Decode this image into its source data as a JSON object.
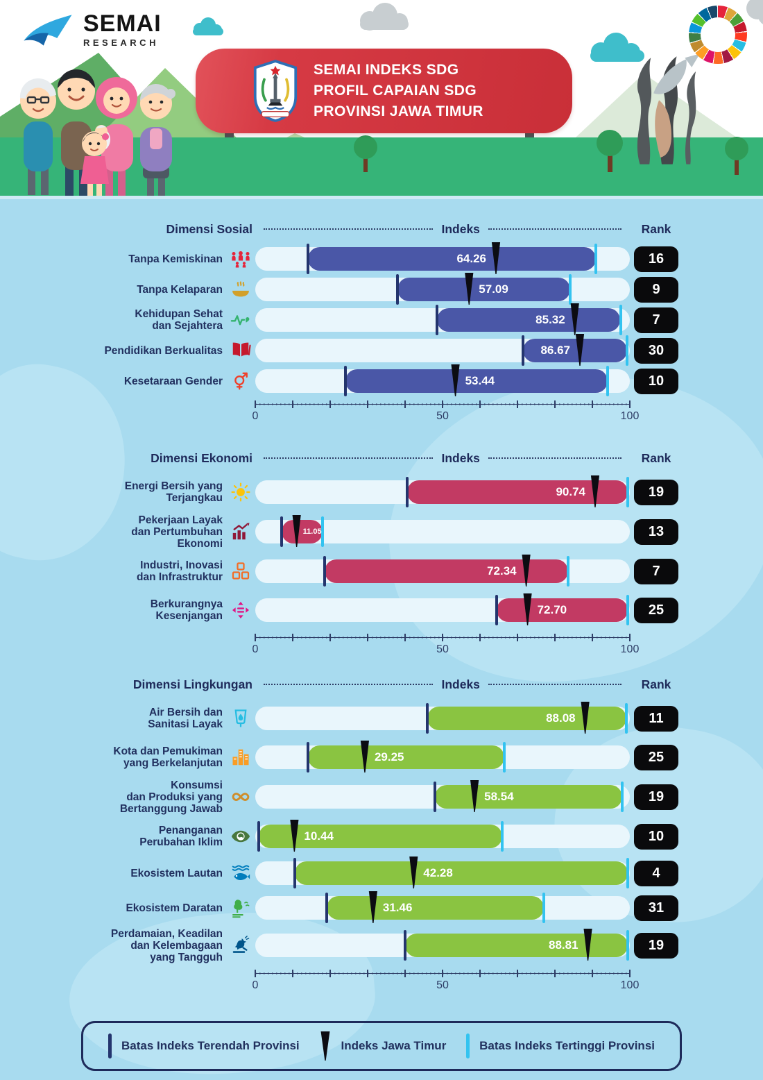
{
  "logo": {
    "title": "SEMAI",
    "subtitle": "RESEARCH"
  },
  "banner": {
    "line1": "SEMAI INDEKS SDG",
    "line2": "PROFIL CAPAIAN SDG",
    "line3": "PROVINSI JAWA TIMUR"
  },
  "table_headers": {
    "indeks": "Indeks",
    "rank": "Rank"
  },
  "legend": {
    "min_label": "Batas Indeks Terendah Provinsi",
    "index_label": "Indeks Jawa Timur",
    "max_label": "Batas Indeks Tertinggi Provinsi"
  },
  "colors": {
    "background": "#a8dbef",
    "track": "#e9f6fc",
    "social_bar": "#4a57a7",
    "economy_bar": "#c23a63",
    "environment_bar": "#8ac441",
    "min_tick": "#24356e",
    "max_tick": "#33c3f0",
    "marker": "#0c0c12",
    "rank_badge": "#0a0a0c",
    "banner_red": "#c92f38",
    "ground_green": "#36b478"
  },
  "sdg_wheel_colors": [
    "#E5243B",
    "#DDA63A",
    "#4C9F38",
    "#C5192D",
    "#FF3A21",
    "#26BDE2",
    "#FCC30B",
    "#A21942",
    "#FD6925",
    "#DD1367",
    "#FD9D24",
    "#BF8B2E",
    "#3F7E44",
    "#0A97D9",
    "#56C02B",
    "#00689D",
    "#19486A"
  ],
  "chart_data": {
    "type": "bar",
    "title": "SEMAI INDEKS SDG — PROFIL CAPAIAN SDG PROVINSI JAWA TIMUR",
    "xlim": [
      0,
      100
    ],
    "axis_ticks": [
      0,
      50,
      100
    ],
    "note": "Horizontal range bars: colored segment spans lowest-to-highest province index; black triangle marks the East Java index value; black badge is national rank.",
    "sections": [
      {
        "name": "Dimensi Sosial",
        "color_key": "social_bar",
        "rows": [
          {
            "label_lines": [
              "Tanpa Kemiskinan"
            ],
            "icon": "family",
            "icon_color": "#e5243b",
            "index": 64.26,
            "display": "64.26",
            "min": 14,
            "max": 91,
            "rank": "16"
          },
          {
            "label_lines": [
              "Tanpa Kelaparan"
            ],
            "icon": "bowl",
            "icon_color": "#d2a02a",
            "index": 57.09,
            "display": "57.09",
            "min": 38,
            "max": 84,
            "rank": "9"
          },
          {
            "label_lines": [
              "Kehidupan Sehat",
              "dan Sejahtera"
            ],
            "icon": "heartbeat",
            "icon_color": "#34b36f",
            "index": 85.32,
            "display": "85.32",
            "min": 48.5,
            "max": 97.5,
            "rank": "7"
          },
          {
            "label_lines": [
              "Pendidikan Berkualitas"
            ],
            "icon": "book",
            "icon_color": "#c5192d",
            "index": 86.67,
            "display": "86.67",
            "min": 71.5,
            "max": 99.3,
            "rank": "30"
          },
          {
            "label_lines": [
              "Kesetaraan Gender"
            ],
            "icon": "gender",
            "icon_color": "#ef402b",
            "index": 53.44,
            "display": "53.44",
            "min": 24,
            "max": 94,
            "rank": "10"
          }
        ]
      },
      {
        "name": "Dimensi Ekonomi",
        "color_key": "economy_bar",
        "rows": [
          {
            "label_lines": [
              "Energi Bersih yang",
              "Terjangkau"
            ],
            "icon": "sun",
            "icon_color": "#fcc30b",
            "index": 90.74,
            "display": "90.74",
            "min": 40.5,
            "max": 99.5,
            "rank": "19"
          },
          {
            "label_lines": [
              "Pekerjaan Layak",
              "dan Pertumbuhan",
              "Ekonomi"
            ],
            "icon": "growth",
            "icon_color": "#8f1838",
            "index": 11.05,
            "display": "11.05",
            "min": 7,
            "max": 18,
            "rank": "13",
            "small_value": true
          },
          {
            "label_lines": [
              "Industri, Inovasi",
              "dan Infrastruktur"
            ],
            "icon": "cubes",
            "icon_color": "#f36d25",
            "index": 72.34,
            "display": "72.34",
            "min": 18.5,
            "max": 83.5,
            "rank": "7"
          },
          {
            "label_lines": [
              "Berkurangnya",
              "Kesenjangan"
            ],
            "icon": "equality",
            "icon_color": "#e11484",
            "index": 72.7,
            "display": "72.70",
            "min": 64.5,
            "max": 99.5,
            "rank": "25"
          }
        ]
      },
      {
        "name": "Dimensi Lingkungan",
        "color_key": "environment_bar",
        "rows": [
          {
            "label_lines": [
              "Air Bersih dan",
              "Sanitasi Layak"
            ],
            "icon": "waterdrop",
            "icon_color": "#26bde2",
            "index": 88.08,
            "display": "88.08",
            "min": 46,
            "max": 99,
            "rank": "11"
          },
          {
            "label_lines": [
              "Kota dan Pemukiman",
              "yang Berkelanjutan"
            ],
            "icon": "city",
            "icon_color": "#f99d26",
            "index": 29.25,
            "display": "29.25",
            "min": 14,
            "max": 66.5,
            "rank": "25"
          },
          {
            "label_lines": [
              "Konsumsi",
              "dan Produksi yang",
              "Bertanggung Jawab"
            ],
            "icon": "infinity",
            "icon_color": "#cf8d2a",
            "index": 58.54,
            "display": "58.54",
            "min": 48,
            "max": 98,
            "rank": "19"
          },
          {
            "label_lines": [
              "Penanganan",
              "Perubahan Iklim"
            ],
            "icon": "climate",
            "icon_color": "#48773e",
            "index": 10.44,
            "display": "10.44",
            "min": 1,
            "max": 66,
            "rank": "10"
          },
          {
            "label_lines": [
              "Ekosistem Lautan"
            ],
            "icon": "fish",
            "icon_color": "#007dbc",
            "index": 42.28,
            "display": "42.28",
            "min": 10.5,
            "max": 99.5,
            "rank": "4"
          },
          {
            "label_lines": [
              "Ekosistem Daratan"
            ],
            "icon": "tree",
            "icon_color": "#40ae49",
            "index": 31.46,
            "display": "31.46",
            "min": 19,
            "max": 77,
            "rank": "31"
          },
          {
            "label_lines": [
              "Perdamaian, Keadilan",
              "dan Kelembagaan",
              "yang Tangguh"
            ],
            "icon": "dove",
            "icon_color": "#00558a",
            "index": 88.81,
            "display": "88.81",
            "min": 40,
            "max": 99.5,
            "rank": "19"
          }
        ]
      }
    ]
  }
}
